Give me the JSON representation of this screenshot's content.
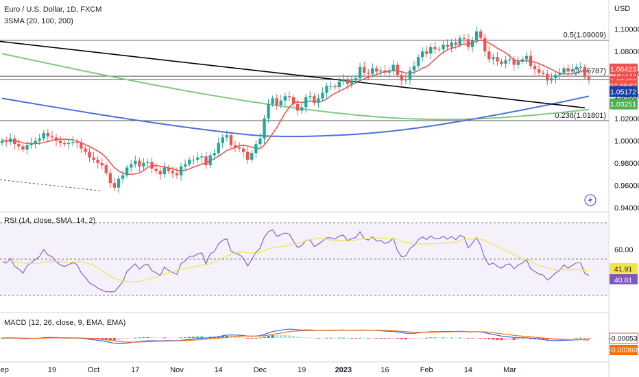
{
  "title": "Euro / U.S. Dollar, 1D, FXCM",
  "currency": "USD",
  "sma_legend": "3SMA (20, 100, 200)",
  "rsi_legend": "RSI (14, close, SMA, 14, 2)",
  "macd_legend": "MACD (12, 26, close, 9, EMA, EMA)",
  "colors": {
    "up": "#26a69a",
    "down": "#ef5350",
    "sma20": "#ef5350",
    "sma100": "#4a6fd8",
    "sma200": "#7fc97f",
    "rsi": "#7e57c2",
    "rsi_ma": "#f5e24a",
    "macd": "#2962ff",
    "signal": "#ff6d00",
    "fib_line": "#555555",
    "trend_line": "#000000"
  },
  "chart_data": [
    {
      "type": "candlestick",
      "title": "Euro / U.S. Dollar, 1D, FXCM",
      "ylabel": "USD",
      "ylim": [
        0.94,
        1.104
      ],
      "y_ticks": [
        "1.10000",
        "1.08000",
        "1.06000",
        "1.04000",
        "1.02000",
        "1.00000",
        "0.98000",
        "0.96000",
        "0.94000"
      ],
      "x_labels": [
        "Sep",
        "19",
        "Oct",
        "17",
        "Nov",
        "14",
        "Dec",
        "19",
        "2023",
        "16",
        "Feb",
        "14",
        "Mar"
      ],
      "closes": [
        1.0,
        0.999,
        1.002,
        0.997,
        0.995,
        0.992,
        0.996,
        0.998,
        1.0,
        1.002,
        1.007,
        1.004,
        1.003,
        1.0,
        0.998,
        0.997,
        0.998,
        0.999,
        0.998,
        0.993,
        0.99,
        0.985,
        0.983,
        0.98,
        0.978,
        0.971,
        0.962,
        0.958,
        0.966,
        0.969,
        0.976,
        0.979,
        0.982,
        0.977,
        0.98,
        0.981,
        0.975,
        0.973,
        0.97,
        0.976,
        0.973,
        0.971,
        0.969,
        0.977,
        0.979,
        0.983,
        0.983,
        0.985,
        0.986,
        0.978,
        0.987,
        0.989,
        0.998,
        1.003,
        1.005,
        0.996,
        0.994,
        0.993,
        0.99,
        0.983,
        0.989,
        0.997,
        1.002,
        1.02,
        1.033,
        1.038,
        1.032,
        1.036,
        1.04,
        1.039,
        1.033,
        1.027,
        1.03,
        1.039,
        1.04,
        1.034,
        1.038,
        1.043,
        1.049,
        1.049,
        1.048,
        1.053,
        1.055,
        1.051,
        1.054,
        1.056,
        1.066,
        1.061,
        1.06,
        1.065,
        1.062,
        1.063,
        1.061,
        1.063,
        1.068,
        1.059,
        1.054,
        1.055,
        1.063,
        1.067,
        1.075,
        1.08,
        1.078,
        1.084,
        1.082,
        1.082,
        1.086,
        1.084,
        1.088,
        1.086,
        1.092,
        1.091,
        1.084,
        1.09,
        1.098,
        1.092,
        1.08,
        1.073,
        1.075,
        1.071,
        1.069,
        1.072,
        1.073,
        1.068,
        1.071,
        1.073,
        1.076,
        1.067,
        1.064,
        1.061,
        1.06,
        1.054,
        1.056,
        1.059,
        1.061,
        1.065,
        1.062,
        1.064,
        1.066,
        1.066,
        1.057,
        1.055
      ],
      "opens": [
        0.998,
        1.0,
        0.999,
        1.002,
        0.997,
        0.995,
        0.992,
        0.996,
        0.998,
        1.0,
        1.002,
        1.007,
        1.004,
        1.003,
        1.0,
        0.998,
        0.997,
        0.998,
        0.999,
        0.998,
        0.993,
        0.99,
        0.985,
        0.983,
        0.98,
        0.978,
        0.971,
        0.962,
        0.958,
        0.966,
        0.969,
        0.976,
        0.979,
        0.982,
        0.977,
        0.98,
        0.981,
        0.975,
        0.973,
        0.97,
        0.976,
        0.973,
        0.971,
        0.969,
        0.977,
        0.979,
        0.983,
        0.983,
        0.985,
        0.986,
        0.978,
        0.987,
        0.989,
        0.998,
        1.003,
        1.005,
        0.996,
        0.994,
        0.993,
        0.99,
        0.983,
        0.989,
        0.997,
        1.002,
        1.02,
        1.033,
        1.038,
        1.032,
        1.036,
        1.04,
        1.039,
        1.033,
        1.027,
        1.03,
        1.039,
        1.04,
        1.034,
        1.038,
        1.043,
        1.049,
        1.049,
        1.048,
        1.053,
        1.055,
        1.051,
        1.054,
        1.056,
        1.066,
        1.061,
        1.06,
        1.065,
        1.062,
        1.063,
        1.061,
        1.063,
        1.068,
        1.059,
        1.054,
        1.055,
        1.063,
        1.067,
        1.075,
        1.08,
        1.078,
        1.084,
        1.082,
        1.082,
        1.086,
        1.084,
        1.088,
        1.086,
        1.092,
        1.091,
        1.084,
        1.09,
        1.098,
        1.092,
        1.08,
        1.073,
        1.075,
        1.071,
        1.069,
        1.072,
        1.073,
        1.068,
        1.071,
        1.073,
        1.076,
        1.067,
        1.064,
        1.061,
        1.06,
        1.054,
        1.056,
        1.059,
        1.061,
        1.065,
        1.062,
        1.064,
        1.066,
        1.066,
        1.057
      ],
      "sma20_start": 1.0,
      "horizontal_levels": [
        {
          "price": 1.09009,
          "label": "0.5(1.09009)"
        },
        {
          "price": 1.05787,
          "label": "(1.05787)"
        },
        {
          "price": 1.05477,
          "label": ""
        },
        {
          "price": 1.01801,
          "label": "0.236(1.01801)"
        }
      ],
      "trendline": {
        "p1": [
          0,
          1.089
        ],
        "p2": [
          140,
          1.0295
        ]
      },
      "support_line": {
        "p1": [
          0,
          0.965
        ],
        "p2": [
          24,
          0.955
        ]
      },
      "price_badges": [
        {
          "value": "1.06423",
          "color": "#ef5350",
          "price": 1.06423
        },
        {
          "value": "1.05477",
          "color": "#ef5350",
          "price": 1.0534
        },
        {
          "value": "07:48:51",
          "color": "#ef5350",
          "price": 1.0492
        },
        {
          "value": "1.05172",
          "color": "#1a3ea8",
          "price": 1.044
        },
        {
          "value": "1.03251",
          "color": "#4caf50",
          "price": 1.033
        }
      ]
    },
    {
      "type": "line",
      "title": "RSI (14, close, SMA, 14, 2)",
      "ylim": [
        22,
        82
      ],
      "y_ticks": [
        "60.00"
      ],
      "rsi_value": "41.91",
      "rsi_ma_value": "40.81"
    },
    {
      "type": "bar",
      "title": "MACD (12, 26, close, 9, EMA, EMA)",
      "macd_value": "-0.00053",
      "signal_value": "-0.00360"
    }
  ]
}
